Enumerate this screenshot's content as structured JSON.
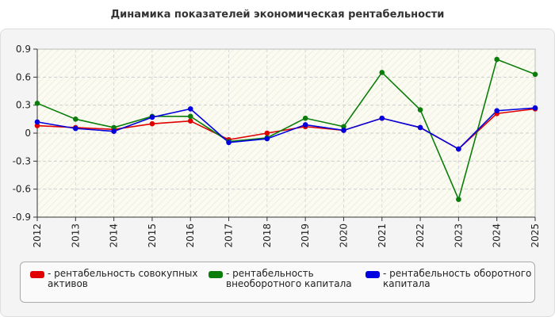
{
  "chart_data": {
    "type": "line",
    "title": "Динамика показателей экономическая рентабельности",
    "xlabel": "",
    "ylabel": "",
    "x": [
      "2012",
      "2013",
      "2014",
      "2015",
      "2016",
      "2017",
      "2018",
      "2019",
      "2020",
      "2021",
      "2022",
      "2023",
      "2024",
      "2025"
    ],
    "ylim": [
      -0.9,
      0.9
    ],
    "yticks": [
      0.9,
      0.6,
      0.3,
      0,
      -0.3,
      -0.6,
      -0.9
    ],
    "ytick_labels": [
      "0.9",
      "0.6",
      "0.3",
      "0",
      "-0.3",
      "-0.6",
      "-0.9"
    ],
    "grid": true,
    "legend_position": "bottom",
    "series": [
      {
        "name": "- рентабельность совокупных активов",
        "color": "#e00000",
        "values": [
          0.08,
          0.06,
          0.04,
          0.1,
          0.13,
          -0.07,
          0.0,
          0.07,
          0.03,
          0.16,
          0.06,
          -0.17,
          0.21,
          0.26
        ]
      },
      {
        "name": "- рентабельность внеоборотного капитала",
        "color": "#0a7d0a",
        "values": [
          0.32,
          0.15,
          0.06,
          0.18,
          0.18,
          -0.09,
          -0.05,
          0.16,
          0.07,
          0.65,
          0.25,
          -0.71,
          0.79,
          0.63
        ]
      },
      {
        "name": "- рентабельность оборотного капитала",
        "color": "#0000e0",
        "values": [
          0.12,
          0.05,
          0.02,
          0.17,
          0.26,
          -0.1,
          -0.06,
          0.09,
          0.03,
          0.16,
          0.06,
          -0.17,
          0.24,
          0.27
        ]
      }
    ]
  }
}
